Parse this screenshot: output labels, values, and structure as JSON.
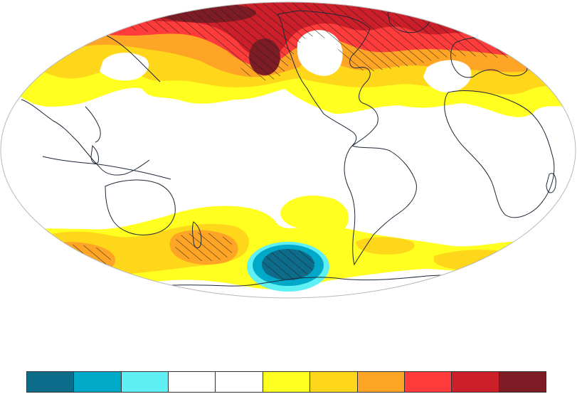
{
  "map": {
    "projection": "mollweide",
    "central_longitude": -150,
    "field": "anomaly",
    "hatching": "significant-regions"
  },
  "colorbar": {
    "colors": [
      "#0e6c8b",
      "#00a9c7",
      "#5ff0f5",
      "#ffffff",
      "#ffffff",
      "#ffff20",
      "#ffd71a",
      "#ffa526",
      "#ff3b3b",
      "#cc1f2a",
      "#7d1c24"
    ],
    "labels": []
  },
  "palette": {
    "yellow": "#ffff20",
    "gold": "#ffd71a",
    "orange": "#ffa526",
    "red": "#ff3b3b",
    "crimson": "#cc1f2a",
    "maroon": "#7d1c24",
    "cyan": "#5ff0f5",
    "teal": "#00a9c7",
    "deep-teal": "#0e6c8b",
    "coast": "#1d2838"
  }
}
